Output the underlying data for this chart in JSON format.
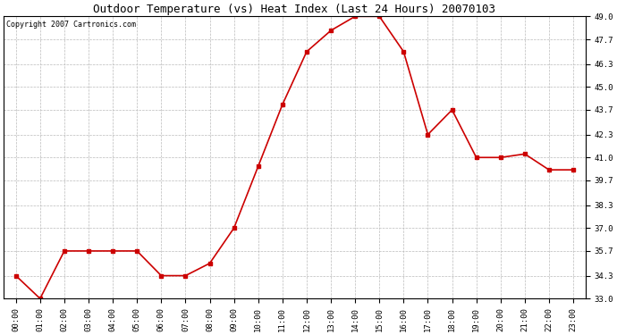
{
  "title": "Outdoor Temperature (vs) Heat Index (Last 24 Hours) 20070103",
  "copyright": "Copyright 2007 Cartronics.com",
  "x_labels": [
    "00:00",
    "01:00",
    "02:00",
    "03:00",
    "04:00",
    "05:00",
    "06:00",
    "07:00",
    "08:00",
    "09:00",
    "10:00",
    "11:00",
    "12:00",
    "13:00",
    "14:00",
    "15:00",
    "16:00",
    "17:00",
    "18:00",
    "19:00",
    "20:00",
    "21:00",
    "22:00",
    "23:00"
  ],
  "y_values": [
    34.3,
    33.0,
    35.7,
    35.7,
    35.7,
    35.7,
    34.3,
    34.3,
    35.0,
    37.0,
    40.5,
    44.0,
    47.0,
    48.2,
    49.0,
    49.0,
    47.0,
    42.3,
    43.7,
    41.0,
    41.0,
    41.2,
    40.3,
    40.3
  ],
  "line_color": "#cc0000",
  "marker": "s",
  "marker_size": 2.5,
  "line_width": 1.2,
  "ylim": [
    33.0,
    49.0
  ],
  "yticks": [
    33.0,
    34.3,
    35.7,
    37.0,
    38.3,
    39.7,
    41.0,
    42.3,
    43.7,
    45.0,
    46.3,
    47.7,
    49.0
  ],
  "background_color": "#ffffff",
  "plot_bg_color": "#ffffff",
  "grid_color": "#bbbbbb",
  "title_fontsize": 9,
  "tick_fontsize": 6.5,
  "copyright_fontsize": 6
}
